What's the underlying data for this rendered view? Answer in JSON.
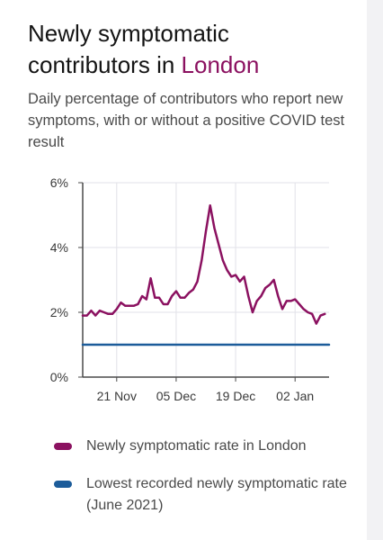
{
  "header": {
    "title_prefix": "Newly symptomatic contributors in ",
    "title_region": "London",
    "subtitle": "Daily percentage of contributors who report new symptoms, with or without a positive COVID test result"
  },
  "colors": {
    "series_rate": "#8b1160",
    "baseline": "#1c5c9a",
    "grid": "#e2e2e8",
    "axis": "#4a4a4a"
  },
  "legend": {
    "items": [
      {
        "label": "Newly symptomatic rate in London",
        "color": "#8b1160"
      },
      {
        "label": "Lowest recorded newly symptomatic rate (June 2021)",
        "color": "#1c5c9a"
      }
    ]
  },
  "chart_data": {
    "type": "line",
    "x_type": "date",
    "ylim": [
      0,
      6
    ],
    "yticks": [
      0,
      2,
      4,
      6
    ],
    "ytick_labels": [
      "0%",
      "2%",
      "4%",
      "6%"
    ],
    "xlim": [
      "2020-11-13",
      "2021-01-10"
    ],
    "xticks": [
      {
        "date": "2020-11-21",
        "label": "21 Nov"
      },
      {
        "date": "2020-12-05",
        "label": "05 Dec"
      },
      {
        "date": "2020-12-19",
        "label": "19 Dec"
      },
      {
        "date": "2021-01-02",
        "label": "02 Jan"
      }
    ],
    "grid": true,
    "series": [
      {
        "name": "Newly symptomatic rate in London",
        "color": "#8b1160",
        "points": [
          [
            "2020-11-13",
            1.9
          ],
          [
            "2020-11-14",
            1.9
          ],
          [
            "2020-11-15",
            2.05
          ],
          [
            "2020-11-16",
            1.9
          ],
          [
            "2020-11-17",
            2.05
          ],
          [
            "2020-11-18",
            2.0
          ],
          [
            "2020-11-19",
            1.95
          ],
          [
            "2020-11-20",
            1.95
          ],
          [
            "2020-11-21",
            2.1
          ],
          [
            "2020-11-22",
            2.3
          ],
          [
            "2020-11-23",
            2.2
          ],
          [
            "2020-11-24",
            2.2
          ],
          [
            "2020-11-25",
            2.2
          ],
          [
            "2020-11-26",
            2.25
          ],
          [
            "2020-11-27",
            2.5
          ],
          [
            "2020-11-28",
            2.4
          ],
          [
            "2020-11-29",
            3.05
          ],
          [
            "2020-11-30",
            2.45
          ],
          [
            "2020-12-01",
            2.45
          ],
          [
            "2020-12-02",
            2.25
          ],
          [
            "2020-12-03",
            2.25
          ],
          [
            "2020-12-04",
            2.5
          ],
          [
            "2020-12-05",
            2.65
          ],
          [
            "2020-12-06",
            2.45
          ],
          [
            "2020-12-07",
            2.45
          ],
          [
            "2020-12-08",
            2.6
          ],
          [
            "2020-12-09",
            2.7
          ],
          [
            "2020-12-10",
            2.95
          ],
          [
            "2020-12-11",
            3.6
          ],
          [
            "2020-12-12",
            4.5
          ],
          [
            "2020-12-13",
            5.3
          ],
          [
            "2020-12-14",
            4.6
          ],
          [
            "2020-12-15",
            4.1
          ],
          [
            "2020-12-16",
            3.6
          ],
          [
            "2020-12-17",
            3.3
          ],
          [
            "2020-12-18",
            3.1
          ],
          [
            "2020-12-19",
            3.15
          ],
          [
            "2020-12-20",
            2.95
          ],
          [
            "2020-12-21",
            3.1
          ],
          [
            "2020-12-22",
            2.5
          ],
          [
            "2020-12-23",
            2.0
          ],
          [
            "2020-12-24",
            2.35
          ],
          [
            "2020-12-25",
            2.5
          ],
          [
            "2020-12-26",
            2.75
          ],
          [
            "2020-12-27",
            2.85
          ],
          [
            "2020-12-28",
            3.0
          ],
          [
            "2020-12-29",
            2.5
          ],
          [
            "2020-12-30",
            2.1
          ],
          [
            "2020-12-31",
            2.35
          ],
          [
            "2021-01-01",
            2.35
          ],
          [
            "2021-01-02",
            2.4
          ],
          [
            "2021-01-03",
            2.25
          ],
          [
            "2021-01-04",
            2.1
          ],
          [
            "2021-01-05",
            2.0
          ],
          [
            "2021-01-06",
            1.95
          ],
          [
            "2021-01-07",
            1.65
          ],
          [
            "2021-01-08",
            1.9
          ],
          [
            "2021-01-09",
            1.95
          ]
        ]
      },
      {
        "name": "Lowest recorded newly symptomatic rate (June 2021)",
        "color": "#1c5c9a",
        "points": [
          [
            "2020-11-13",
            1.0
          ],
          [
            "2021-01-10",
            1.0
          ]
        ]
      }
    ]
  }
}
